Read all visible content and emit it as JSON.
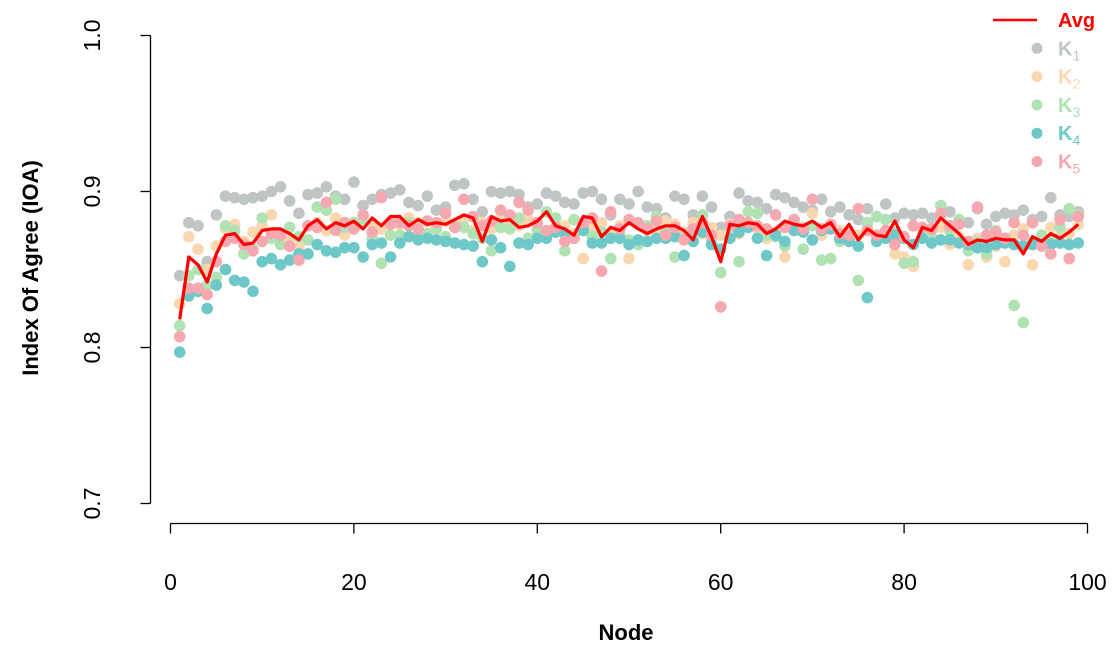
{
  "chart_data": {
    "type": "scatter",
    "xlabel": "Node",
    "ylabel": "Index Of Agree (IOA)",
    "xlim": [
      0,
      100
    ],
    "ylim": [
      0.7,
      1.0
    ],
    "x_ticks": [
      "0",
      "20",
      "40",
      "60",
      "80",
      "100"
    ],
    "y_ticks": [
      "0.7",
      "0.8",
      "0.9",
      "1.0"
    ],
    "legend_position": "top-right",
    "series": [
      {
        "name": "K1",
        "label_main": "K",
        "label_sub": "1",
        "color": "#bfc5c5",
        "kind": "points",
        "x": [
          1,
          2,
          3,
          4,
          5,
          6,
          7,
          8,
          9,
          10,
          11,
          12,
          13,
          14,
          15,
          16,
          17,
          18,
          19,
          20,
          21,
          22,
          23,
          24,
          25,
          26,
          27,
          28,
          29,
          30,
          31,
          32,
          33,
          34,
          35,
          36,
          37,
          38,
          39,
          40,
          41,
          42,
          43,
          44,
          45,
          46,
          47,
          48,
          49,
          50,
          51,
          52,
          53,
          54,
          55,
          56,
          57,
          58,
          59,
          60,
          61,
          62,
          63,
          64,
          65,
          66,
          67,
          68,
          69,
          70,
          71,
          72,
          73,
          74,
          75,
          76,
          77,
          78,
          79,
          80,
          81,
          82,
          83,
          84,
          85,
          86,
          87,
          88,
          89,
          90,
          91,
          92,
          93,
          94,
          95,
          96,
          97,
          98,
          99
        ],
        "y": [
          0.846,
          0.88,
          0.878,
          0.855,
          0.885,
          0.897,
          0.896,
          0.895,
          0.896,
          0.897,
          0.9,
          0.903,
          0.894,
          0.886,
          0.898,
          0.899,
          0.903,
          0.897,
          0.895,
          0.906,
          0.891,
          0.895,
          0.898,
          0.899,
          0.901,
          0.893,
          0.891,
          0.897,
          0.888,
          0.89,
          0.904,
          0.905,
          0.895,
          0.887,
          0.9,
          0.899,
          0.9,
          0.898,
          0.89,
          0.892,
          0.899,
          0.897,
          0.893,
          0.892,
          0.899,
          0.9,
          0.895,
          0.885,
          0.895,
          0.892,
          0.9,
          0.89,
          0.889,
          0.883,
          0.897,
          0.895,
          0.885,
          0.897,
          0.89,
          0.877,
          0.884,
          0.899,
          0.894,
          0.893,
          0.889,
          0.898,
          0.896,
          0.893,
          0.89,
          0.888,
          0.895,
          0.887,
          0.89,
          0.885,
          0.882,
          0.889,
          0.884,
          0.892,
          0.883,
          0.886,
          0.885,
          0.886,
          0.883,
          0.885,
          0.887,
          0.882,
          0.88,
          0.889,
          0.879,
          0.884,
          0.886,
          0.885,
          0.888,
          0.882,
          0.884,
          0.896,
          0.885,
          0.884,
          0.887
        ]
      },
      {
        "name": "K2",
        "label_main": "K",
        "label_sub": "2",
        "color": "#fbd7b0",
        "kind": "points",
        "x": [
          1,
          2,
          3,
          4,
          5,
          6,
          7,
          8,
          9,
          10,
          11,
          12,
          13,
          14,
          15,
          16,
          17,
          18,
          19,
          20,
          21,
          22,
          23,
          24,
          25,
          26,
          27,
          28,
          29,
          30,
          31,
          32,
          33,
          34,
          35,
          36,
          37,
          38,
          39,
          40,
          41,
          42,
          43,
          44,
          45,
          46,
          47,
          48,
          49,
          50,
          51,
          52,
          53,
          54,
          55,
          56,
          57,
          58,
          59,
          60,
          61,
          62,
          63,
          64,
          65,
          66,
          67,
          68,
          69,
          70,
          71,
          72,
          73,
          74,
          75,
          76,
          77,
          78,
          79,
          80,
          81,
          82,
          83,
          84,
          85,
          86,
          87,
          88,
          89,
          90,
          91,
          92,
          93,
          94,
          95,
          96,
          97,
          98,
          99
        ],
        "y": [
          0.828,
          0.871,
          0.863,
          0.85,
          0.865,
          0.876,
          0.879,
          0.868,
          0.874,
          0.878,
          0.885,
          0.872,
          0.87,
          0.865,
          0.878,
          0.88,
          0.875,
          0.883,
          0.872,
          0.878,
          0.884,
          0.88,
          0.876,
          0.881,
          0.879,
          0.883,
          0.88,
          0.873,
          0.879,
          0.881,
          0.877,
          0.882,
          0.875,
          0.88,
          0.876,
          0.883,
          0.879,
          0.878,
          0.882,
          0.877,
          0.874,
          0.876,
          0.878,
          0.873,
          0.857,
          0.877,
          0.88,
          0.873,
          0.878,
          0.857,
          0.879,
          0.875,
          0.876,
          0.881,
          0.879,
          0.874,
          0.88,
          0.873,
          0.877,
          0.872,
          0.879,
          0.873,
          0.88,
          0.876,
          0.87,
          0.874,
          0.858,
          0.879,
          0.877,
          0.886,
          0.872,
          0.876,
          0.875,
          0.873,
          0.872,
          0.877,
          0.872,
          0.874,
          0.86,
          0.858,
          0.852,
          0.874,
          0.872,
          0.877,
          0.866,
          0.871,
          0.853,
          0.87,
          0.858,
          0.865,
          0.855,
          0.872,
          0.876,
          0.853,
          0.869,
          0.877,
          0.871,
          0.873,
          0.879
        ]
      },
      {
        "name": "K3",
        "label_main": "K",
        "label_sub": "3",
        "color": "#b1e2b3",
        "kind": "points",
        "x": [
          1,
          2,
          3,
          4,
          5,
          6,
          7,
          8,
          9,
          10,
          11,
          12,
          13,
          14,
          15,
          16,
          17,
          18,
          19,
          20,
          21,
          22,
          23,
          24,
          25,
          26,
          27,
          28,
          29,
          30,
          31,
          32,
          33,
          34,
          35,
          36,
          37,
          38,
          39,
          40,
          41,
          42,
          43,
          44,
          45,
          46,
          47,
          48,
          49,
          50,
          51,
          52,
          53,
          54,
          55,
          56,
          57,
          58,
          59,
          60,
          61,
          62,
          63,
          64,
          65,
          66,
          67,
          68,
          69,
          70,
          71,
          72,
          73,
          74,
          75,
          76,
          77,
          78,
          79,
          80,
          81,
          82,
          83,
          84,
          85,
          86,
          87,
          88,
          89,
          90,
          91,
          92,
          93,
          94,
          95,
          96,
          97,
          98,
          99
        ],
        "y": [
          0.814,
          0.846,
          0.85,
          0.84,
          0.845,
          0.878,
          0.875,
          0.86,
          0.863,
          0.883,
          0.87,
          0.866,
          0.877,
          0.871,
          0.869,
          0.89,
          0.888,
          0.895,
          0.877,
          0.88,
          0.882,
          0.87,
          0.854,
          0.872,
          0.872,
          0.88,
          0.871,
          0.873,
          0.876,
          0.871,
          0.878,
          0.877,
          0.873,
          0.87,
          0.862,
          0.877,
          0.876,
          0.883,
          0.87,
          0.875,
          0.887,
          0.883,
          0.862,
          0.882,
          0.876,
          0.871,
          0.874,
          0.857,
          0.872,
          0.869,
          0.866,
          0.878,
          0.884,
          0.875,
          0.858,
          0.871,
          0.874,
          0.885,
          0.87,
          0.848,
          0.877,
          0.855,
          0.887,
          0.886,
          0.872,
          0.871,
          0.865,
          0.876,
          0.863,
          0.878,
          0.856,
          0.857,
          0.868,
          0.87,
          0.843,
          0.88,
          0.884,
          0.882,
          0.874,
          0.854,
          0.855,
          0.876,
          0.87,
          0.891,
          0.875,
          0.882,
          0.862,
          0.868,
          0.86,
          0.875,
          0.87,
          0.827,
          0.816,
          0.868,
          0.872,
          0.87,
          0.877,
          0.889,
          0.885
        ]
      },
      {
        "name": "K4",
        "label_main": "K",
        "label_sub": "4",
        "color": "#6ec8c8",
        "kind": "points",
        "x": [
          1,
          2,
          3,
          4,
          5,
          6,
          7,
          8,
          9,
          10,
          11,
          12,
          13,
          14,
          15,
          16,
          17,
          18,
          19,
          20,
          21,
          22,
          23,
          24,
          25,
          26,
          27,
          28,
          29,
          30,
          31,
          32,
          33,
          34,
          35,
          36,
          37,
          38,
          39,
          40,
          41,
          42,
          43,
          44,
          45,
          46,
          47,
          48,
          49,
          50,
          51,
          52,
          53,
          54,
          55,
          56,
          57,
          58,
          59,
          60,
          61,
          62,
          63,
          64,
          65,
          66,
          67,
          68,
          69,
          70,
          71,
          72,
          73,
          74,
          75,
          76,
          77,
          78,
          79,
          80,
          81,
          82,
          83,
          84,
          85,
          86,
          87,
          88,
          89,
          90,
          91,
          92,
          93,
          94,
          95,
          96,
          97,
          98,
          99
        ],
        "y": [
          0.797,
          0.833,
          0.836,
          0.825,
          0.84,
          0.85,
          0.843,
          0.842,
          0.836,
          0.855,
          0.857,
          0.853,
          0.856,
          0.86,
          0.86,
          0.866,
          0.862,
          0.861,
          0.864,
          0.864,
          0.858,
          0.866,
          0.867,
          0.858,
          0.867,
          0.871,
          0.869,
          0.87,
          0.869,
          0.868,
          0.867,
          0.866,
          0.865,
          0.855,
          0.869,
          0.864,
          0.852,
          0.867,
          0.866,
          0.87,
          0.87,
          0.874,
          0.873,
          0.87,
          0.875,
          0.867,
          0.867,
          0.87,
          0.87,
          0.866,
          0.869,
          0.868,
          0.87,
          0.87,
          0.871,
          0.859,
          0.868,
          0.874,
          0.866,
          0.863,
          0.87,
          0.874,
          0.877,
          0.87,
          0.859,
          0.872,
          0.868,
          0.875,
          0.874,
          0.869,
          0.875,
          0.876,
          0.87,
          0.868,
          0.865,
          0.832,
          0.868,
          0.87,
          0.872,
          0.87,
          0.866,
          0.87,
          0.867,
          0.869,
          0.869,
          0.867,
          0.866,
          0.864,
          0.864,
          0.866,
          0.867,
          0.866,
          0.865,
          0.866,
          0.866,
          0.866,
          0.867,
          0.866,
          0.867
        ]
      },
      {
        "name": "K5",
        "label_main": "K",
        "label_sub": "5",
        "color": "#f6a8b0",
        "kind": "points",
        "x": [
          1,
          2,
          3,
          4,
          5,
          6,
          7,
          8,
          9,
          10,
          11,
          12,
          13,
          14,
          15,
          16,
          17,
          18,
          19,
          20,
          21,
          22,
          23,
          24,
          25,
          26,
          27,
          28,
          29,
          30,
          31,
          32,
          33,
          34,
          35,
          36,
          37,
          38,
          39,
          40,
          41,
          42,
          43,
          44,
          45,
          46,
          47,
          48,
          49,
          50,
          51,
          52,
          53,
          54,
          55,
          56,
          57,
          58,
          59,
          60,
          61,
          62,
          63,
          64,
          65,
          66,
          67,
          68,
          69,
          70,
          71,
          72,
          73,
          74,
          75,
          76,
          77,
          78,
          79,
          80,
          81,
          82,
          83,
          84,
          85,
          86,
          87,
          88,
          89,
          90,
          91,
          92,
          93,
          94,
          95,
          96,
          97,
          98,
          99
        ],
        "y": [
          0.807,
          0.838,
          0.838,
          0.834,
          0.855,
          0.868,
          0.87,
          0.866,
          0.862,
          0.868,
          0.873,
          0.872,
          0.865,
          0.856,
          0.878,
          0.877,
          0.893,
          0.875,
          0.88,
          0.876,
          0.885,
          0.874,
          0.896,
          0.879,
          0.88,
          0.878,
          0.876,
          0.881,
          0.88,
          0.886,
          0.877,
          0.895,
          0.884,
          0.878,
          0.881,
          0.888,
          0.885,
          0.893,
          0.888,
          0.88,
          0.875,
          0.877,
          0.868,
          0.87,
          0.88,
          0.883,
          0.849,
          0.887,
          0.876,
          0.882,
          0.88,
          0.876,
          0.881,
          0.872,
          0.877,
          0.869,
          0.876,
          0.88,
          0.872,
          0.826,
          0.878,
          0.882,
          0.88,
          0.878,
          0.876,
          0.885,
          0.877,
          0.882,
          0.876,
          0.895,
          0.876,
          0.879,
          0.873,
          0.872,
          0.889,
          0.875,
          0.872,
          0.875,
          0.866,
          0.871,
          0.878,
          0.877,
          0.876,
          0.886,
          0.878,
          0.879,
          0.868,
          0.89,
          0.872,
          0.874,
          0.87,
          0.88,
          0.872,
          0.88,
          0.865,
          0.86,
          0.882,
          0.857,
          0.884
        ]
      },
      {
        "name": "Avg",
        "label_main": "Avg",
        "label_sub": "",
        "color": "#ff0000",
        "kind": "line",
        "x": [
          1,
          2,
          3,
          4,
          5,
          6,
          7,
          8,
          9,
          10,
          11,
          12,
          13,
          14,
          15,
          16,
          17,
          18,
          19,
          20,
          21,
          22,
          23,
          24,
          25,
          26,
          27,
          28,
          29,
          30,
          31,
          32,
          33,
          34,
          35,
          36,
          37,
          38,
          39,
          40,
          41,
          42,
          43,
          44,
          45,
          46,
          47,
          48,
          49,
          50,
          51,
          52,
          53,
          54,
          55,
          56,
          57,
          58,
          59,
          60,
          61,
          62,
          63,
          64,
          65,
          66,
          67,
          68,
          69,
          70,
          71,
          72,
          73,
          74,
          75,
          76,
          77,
          78,
          79,
          80,
          81,
          82,
          83,
          84,
          85,
          86,
          87,
          88,
          89,
          90,
          91,
          92,
          93,
          94,
          95,
          96,
          97,
          98,
          99
        ],
        "y": [
          0.818,
          0.858,
          0.853,
          0.842,
          0.86,
          0.872,
          0.873,
          0.866,
          0.867,
          0.875,
          0.876,
          0.876,
          0.873,
          0.869,
          0.878,
          0.882,
          0.876,
          0.88,
          0.878,
          0.881,
          0.876,
          0.883,
          0.878,
          0.884,
          0.884,
          0.878,
          0.882,
          0.879,
          0.88,
          0.879,
          0.882,
          0.885,
          0.883,
          0.868,
          0.884,
          0.881,
          0.882,
          0.877,
          0.878,
          0.881,
          0.887,
          0.878,
          0.876,
          0.872,
          0.884,
          0.883,
          0.871,
          0.877,
          0.875,
          0.88,
          0.876,
          0.873,
          0.876,
          0.878,
          0.878,
          0.875,
          0.869,
          0.884,
          0.871,
          0.855,
          0.879,
          0.878,
          0.88,
          0.879,
          0.873,
          0.876,
          0.881,
          0.879,
          0.878,
          0.881,
          0.877,
          0.88,
          0.871,
          0.879,
          0.869,
          0.876,
          0.872,
          0.871,
          0.881,
          0.869,
          0.864,
          0.877,
          0.875,
          0.883,
          0.878,
          0.873,
          0.866,
          0.869,
          0.868,
          0.87,
          0.869,
          0.869,
          0.86,
          0.871,
          0.868,
          0.873,
          0.87,
          0.874,
          0.879
        ]
      }
    ]
  }
}
